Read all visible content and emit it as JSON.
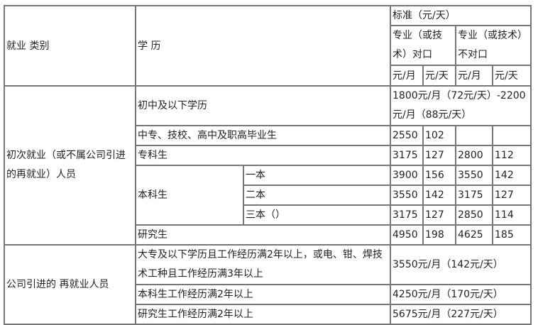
{
  "header": {
    "category": "就业 类别",
    "education": "学 历",
    "standard": "标准（元/天）",
    "matched": "专业（或技术）对口",
    "unmatched": "专业（或技术）不对口",
    "units": [
      "元/月",
      "元/天",
      "元/月",
      "元/天"
    ]
  },
  "group1": {
    "label": "初次就业（或不属公司引进的再就业）人员",
    "junior": {
      "label": "初中及以下学历",
      "value": "1800元/月（72元/天）-2200元/月（88元/天）"
    },
    "vocational": {
      "label": "中专、技校、高中及职高毕业生",
      "values": [
        "2550",
        "102",
        "",
        ""
      ]
    },
    "college": {
      "label": "专科生",
      "values": [
        "3175",
        "127",
        "2800",
        "112"
      ]
    },
    "bachelor": {
      "label": "本科生",
      "tiers": [
        {
          "label": "一本",
          "values": [
            "3900",
            "156",
            "3550",
            "142"
          ]
        },
        {
          "label": "二本",
          "values": [
            "3550",
            "142",
            "3175",
            "127"
          ]
        },
        {
          "label": "三本（）",
          "values": [
            "3175",
            "127",
            "2850",
            "114"
          ]
        }
      ]
    },
    "graduate": {
      "label": "研究生",
      "values": [
        "4950",
        "198",
        "4625",
        "185"
      ]
    }
  },
  "group2": {
    "label": "公司引进的 再就业人员",
    "rows": [
      {
        "label": "大专及以下学历且工作经历满2年以上，或电、钳、焊技术工种且工作经历满3年以上",
        "value": "3550元/月（142元/天）"
      },
      {
        "label": "本科生工作经历满2年以上",
        "value": "4250元/月（170元/天）"
      },
      {
        "label": "研究生工作经历满2年以上",
        "value": "5675元/月（227元/天）"
      }
    ]
  }
}
